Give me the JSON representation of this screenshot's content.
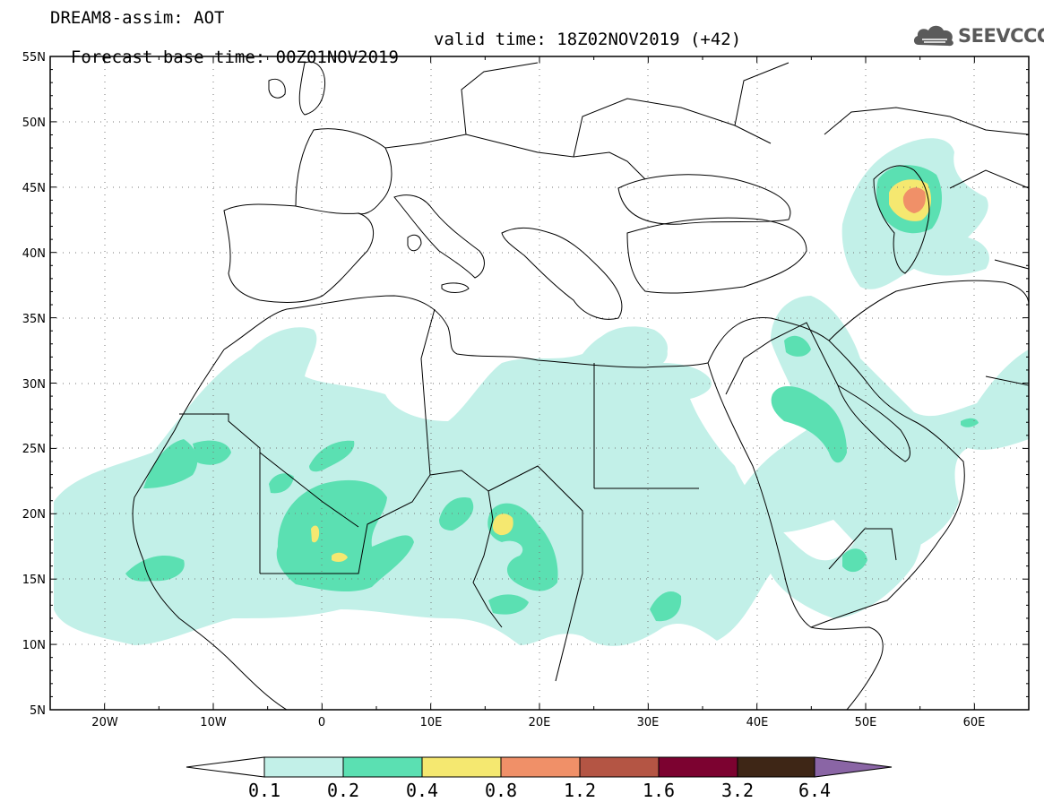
{
  "header": {
    "line1": "DREAM8-assim: AOT",
    "base_time": "Forecast base time: 00Z01NOV2019",
    "valid_time": "valid time: 18Z02NOV2019 (+42)"
  },
  "logo": {
    "text": "SEEVCCC",
    "icon": "cloud-icon"
  },
  "map": {
    "lon_range": [
      -25,
      65
    ],
    "lat_range": [
      5,
      55
    ],
    "lat_labels": [
      "5N",
      "10N",
      "15N",
      "20N",
      "25N",
      "30N",
      "35N",
      "40N",
      "45N",
      "50N",
      "55N"
    ],
    "lon_labels": [
      "20W",
      "10W",
      "0",
      "10E",
      "20E",
      "30E",
      "40E",
      "50E",
      "60E"
    ],
    "grid": "dotted"
  },
  "colorbar": {
    "colors": [
      "#ffffff",
      "#c2f0e8",
      "#5be0b2",
      "#f5e870",
      "#f09068",
      "#b45544",
      "#7c0230",
      "#3e2616",
      "#8a65a5"
    ],
    "labels": [
      "0.1",
      "0.2",
      "0.4",
      "0.8",
      "1.2",
      "1.6",
      "3.2",
      "6.4"
    ]
  }
}
